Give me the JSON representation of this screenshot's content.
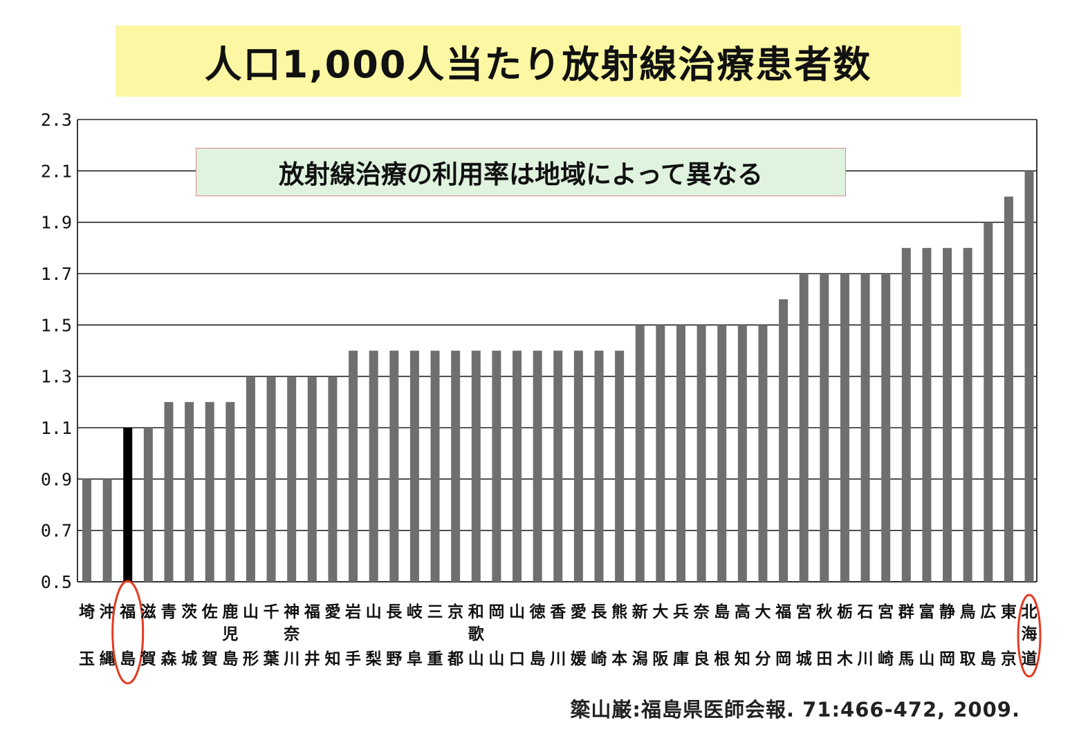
{
  "title": "人口1,000人当たり放射線治療患者数",
  "callout": "放射線治療の利用率は地域によって異なる",
  "citation": "簗山巌:福島県医師会報. 71:466-472, 2009.",
  "colors": {
    "bar": "#6f6f6f",
    "highlight_bar": "#000000",
    "highlight_circle": "#e43a1f",
    "title_bg": "#fbf7a2",
    "callout_bg": "#dff3df"
  },
  "chart_data": {
    "type": "bar",
    "title": "人口1,000人当たり放射線治療患者数",
    "ylim": [
      0.5,
      2.3
    ],
    "yticks": [
      "0.5",
      "0.7",
      "0.9",
      "1.1",
      "1.3",
      "1.5",
      "1.7",
      "1.9",
      "2.1",
      "2.3"
    ],
    "grid": "horizontal",
    "categories": [
      "埼玉",
      "沖縄",
      "福島",
      "滋賀",
      "青森",
      "茨城",
      "佐賀",
      "鹿児島",
      "山形",
      "千葉",
      "神奈川",
      "福井",
      "愛知",
      "岩手",
      "山梨",
      "長野",
      "岐阜",
      "三重",
      "京都",
      "和歌山",
      "岡山",
      "山口",
      "徳島",
      "香川",
      "愛媛",
      "長崎",
      "熊本",
      "新潟",
      "大阪",
      "兵庫",
      "奈良",
      "島根",
      "高知",
      "大分",
      "福岡",
      "宮城",
      "秋田",
      "栃木",
      "石川",
      "宮崎",
      "群馬",
      "富山",
      "静岡",
      "鳥取",
      "広島",
      "東京",
      "北海道"
    ],
    "values": [
      0.9,
      0.9,
      1.1,
      1.1,
      1.2,
      1.2,
      1.2,
      1.2,
      1.3,
      1.3,
      1.3,
      1.3,
      1.3,
      1.4,
      1.4,
      1.4,
      1.4,
      1.4,
      1.4,
      1.4,
      1.4,
      1.4,
      1.4,
      1.4,
      1.4,
      1.4,
      1.4,
      1.5,
      1.5,
      1.5,
      1.5,
      1.5,
      1.5,
      1.5,
      1.6,
      1.7,
      1.7,
      1.7,
      1.7,
      1.7,
      1.8,
      1.8,
      1.8,
      1.8,
      1.9,
      2.0,
      2.1
    ],
    "highlighted": [
      "福島"
    ],
    "circled": [
      "福島",
      "北海道"
    ]
  }
}
